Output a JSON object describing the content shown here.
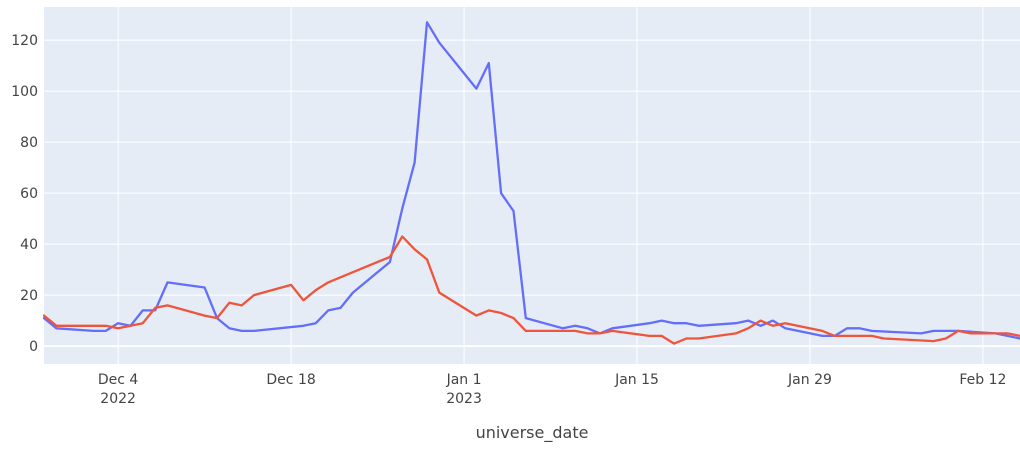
{
  "chart_data": {
    "type": "line",
    "title": "",
    "xlabel": "universe_date",
    "ylabel": "",
    "x_axis_type": "date",
    "xlim": [
      "2022-11-28",
      "2023-02-15"
    ],
    "ylim": [
      -7,
      133
    ],
    "grid": true,
    "legend": "none",
    "background": "#e5ecf6",
    "x_ticks": [
      {
        "date": "2022-12-04",
        "label": "Dec 4",
        "sublabel": "2022"
      },
      {
        "date": "2022-12-18",
        "label": "Dec 18",
        "sublabel": ""
      },
      {
        "date": "2023-01-01",
        "label": "Jan 1",
        "sublabel": "2023"
      },
      {
        "date": "2023-01-15",
        "label": "Jan 15",
        "sublabel": ""
      },
      {
        "date": "2023-01-29",
        "label": "Jan 29",
        "sublabel": ""
      },
      {
        "date": "2023-02-12",
        "label": "Feb 12",
        "sublabel": ""
      }
    ],
    "y_ticks": [
      0,
      20,
      40,
      60,
      80,
      100,
      120
    ],
    "series": [
      {
        "color": "#636efa",
        "points": [
          [
            "2022-11-28",
            11
          ],
          [
            "2022-11-29",
            7
          ],
          [
            "2022-12-02",
            6
          ],
          [
            "2022-12-03",
            6
          ],
          [
            "2022-12-04",
            9
          ],
          [
            "2022-12-05",
            8
          ],
          [
            "2022-12-06",
            14
          ],
          [
            "2022-12-07",
            14
          ],
          [
            "2022-12-08",
            25
          ],
          [
            "2022-12-11",
            23
          ],
          [
            "2022-12-12",
            11
          ],
          [
            "2022-12-13",
            7
          ],
          [
            "2022-12-14",
            6
          ],
          [
            "2022-12-15",
            6
          ],
          [
            "2022-12-19",
            8
          ],
          [
            "2022-12-20",
            9
          ],
          [
            "2022-12-21",
            14
          ],
          [
            "2022-12-22",
            15
          ],
          [
            "2022-12-23",
            21
          ],
          [
            "2022-12-26",
            33
          ],
          [
            "2022-12-27",
            54
          ],
          [
            "2022-12-28",
            72
          ],
          [
            "2022-12-29",
            127
          ],
          [
            "2022-12-30",
            119
          ],
          [
            "2023-01-02",
            101
          ],
          [
            "2023-01-03",
            111
          ],
          [
            "2023-01-04",
            60
          ],
          [
            "2023-01-05",
            53
          ],
          [
            "2023-01-06",
            11
          ],
          [
            "2023-01-09",
            7
          ],
          [
            "2023-01-10",
            8
          ],
          [
            "2023-01-11",
            7
          ],
          [
            "2023-01-12",
            5
          ],
          [
            "2023-01-13",
            7
          ],
          [
            "2023-01-16",
            9
          ],
          [
            "2023-01-17",
            10
          ],
          [
            "2023-01-18",
            9
          ],
          [
            "2023-01-19",
            9
          ],
          [
            "2023-01-20",
            8
          ],
          [
            "2023-01-23",
            9
          ],
          [
            "2023-01-24",
            10
          ],
          [
            "2023-01-25",
            8
          ],
          [
            "2023-01-26",
            10
          ],
          [
            "2023-01-27",
            7
          ],
          [
            "2023-01-30",
            4
          ],
          [
            "2023-01-31",
            4
          ],
          [
            "2023-02-01",
            7
          ],
          [
            "2023-02-02",
            7
          ],
          [
            "2023-02-03",
            6
          ],
          [
            "2023-02-07",
            5
          ],
          [
            "2023-02-08",
            6
          ],
          [
            "2023-02-10",
            6
          ],
          [
            "2023-02-13",
            5
          ],
          [
            "2023-02-14",
            4
          ],
          [
            "2023-02-15",
            3
          ]
        ]
      },
      {
        "color": "#ef553b",
        "points": [
          [
            "2022-11-28",
            12
          ],
          [
            "2022-11-29",
            8
          ],
          [
            "2022-12-02",
            8
          ],
          [
            "2022-12-03",
            8
          ],
          [
            "2022-12-04",
            7
          ],
          [
            "2022-12-05",
            8
          ],
          [
            "2022-12-06",
            9
          ],
          [
            "2022-12-07",
            15
          ],
          [
            "2022-12-08",
            16
          ],
          [
            "2022-12-11",
            12
          ],
          [
            "2022-12-12",
            11
          ],
          [
            "2022-12-13",
            17
          ],
          [
            "2022-12-14",
            16
          ],
          [
            "2022-12-15",
            20
          ],
          [
            "2022-12-18",
            24
          ],
          [
            "2022-12-19",
            18
          ],
          [
            "2022-12-20",
            22
          ],
          [
            "2022-12-21",
            25
          ],
          [
            "2022-12-22",
            27
          ],
          [
            "2022-12-26",
            35
          ],
          [
            "2022-12-27",
            43
          ],
          [
            "2022-12-28",
            38
          ],
          [
            "2022-12-29",
            34
          ],
          [
            "2022-12-30",
            21
          ],
          [
            "2023-01-02",
            12
          ],
          [
            "2023-01-03",
            14
          ],
          [
            "2023-01-04",
            13
          ],
          [
            "2023-01-05",
            11
          ],
          [
            "2023-01-06",
            6
          ],
          [
            "2023-01-09",
            6
          ],
          [
            "2023-01-10",
            6
          ],
          [
            "2023-01-11",
            5
          ],
          [
            "2023-01-12",
            5
          ],
          [
            "2023-01-13",
            6
          ],
          [
            "2023-01-16",
            4
          ],
          [
            "2023-01-17",
            4
          ],
          [
            "2023-01-18",
            1
          ],
          [
            "2023-01-19",
            3
          ],
          [
            "2023-01-20",
            3
          ],
          [
            "2023-01-23",
            5
          ],
          [
            "2023-01-24",
            7
          ],
          [
            "2023-01-25",
            10
          ],
          [
            "2023-01-26",
            8
          ],
          [
            "2023-01-27",
            9
          ],
          [
            "2023-01-30",
            6
          ],
          [
            "2023-01-31",
            4
          ],
          [
            "2023-02-03",
            4
          ],
          [
            "2023-02-04",
            3
          ],
          [
            "2023-02-08",
            2
          ],
          [
            "2023-02-09",
            3
          ],
          [
            "2023-02-10",
            6
          ],
          [
            "2023-02-11",
            5
          ],
          [
            "2023-02-13",
            5
          ],
          [
            "2023-02-14",
            5
          ],
          [
            "2023-02-15",
            4
          ]
        ]
      }
    ]
  }
}
